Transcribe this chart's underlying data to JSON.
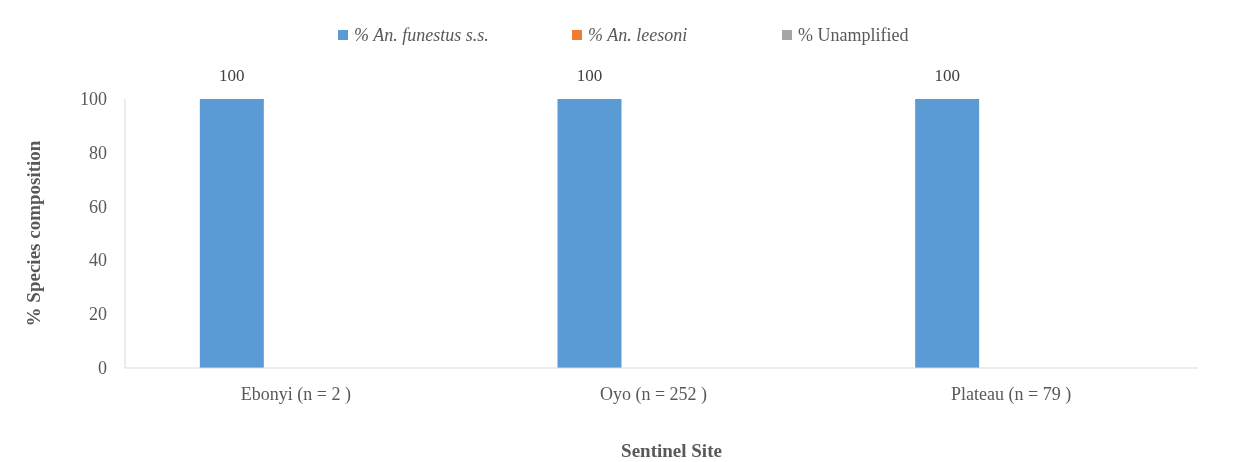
{
  "chart_data": {
    "type": "bar",
    "xlabel": "Sentinel Site",
    "ylabel": "% Species composition",
    "categories": [
      "Ebonyi (n = 2 )",
      "Oyo (n = 252 )",
      "Plateau (n = 79 )"
    ],
    "series": [
      {
        "name": "% An. funestus s.s.",
        "color": "#5b9bd5",
        "values": [
          100,
          100,
          100
        ],
        "value_labels": [
          "100",
          "100",
          "100"
        ]
      },
      {
        "name": "% An. leesoni",
        "color": "#ed7d31",
        "values": [
          0,
          0,
          0
        ],
        "value_labels": [
          null,
          null,
          null
        ]
      },
      {
        "name": "% Unamplified",
        "color": "#a5a5a5",
        "values": [
          0,
          0,
          0
        ],
        "value_labels": [
          null,
          null,
          null
        ]
      }
    ],
    "ylim": [
      0,
      100
    ],
    "yticks": [
      0,
      20,
      40,
      60,
      80,
      100
    ],
    "legend": "top",
    "grid": false
  }
}
